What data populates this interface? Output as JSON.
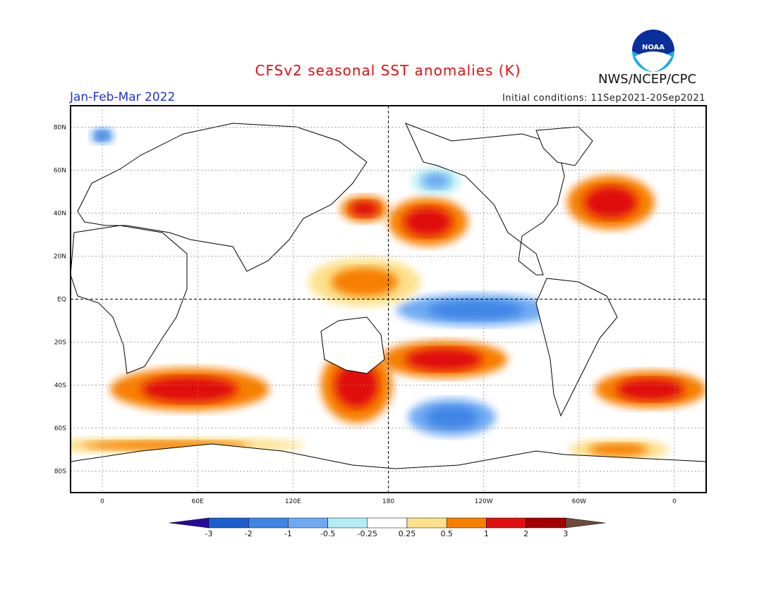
{
  "header": {
    "title": "CFSv2 seasonal SST anomalies (K)",
    "agency": "NWS/NCEP/CPC",
    "season": "Jan-Feb-Mar 2022",
    "initial_conditions": "Initial conditions: 11Sep2021-20Sep2021",
    "logo_text": "NOAA"
  },
  "map": {
    "projection": "cylindrical equidistant",
    "lon_range": [
      -20,
      380
    ],
    "lat_range": [
      -90,
      90
    ],
    "lat_ticks": [
      {
        "lat": 80,
        "label": "80N"
      },
      {
        "lat": 60,
        "label": "60N"
      },
      {
        "lat": 40,
        "label": "40N"
      },
      {
        "lat": 20,
        "label": "20N"
      },
      {
        "lat": 0,
        "label": "EQ"
      },
      {
        "lat": -20,
        "label": "20S"
      },
      {
        "lat": -40,
        "label": "40S"
      },
      {
        "lat": -60,
        "label": "60S"
      },
      {
        "lat": -80,
        "label": "80S"
      }
    ],
    "lon_ticks": [
      {
        "lon": 0,
        "label": "0"
      },
      {
        "lon": 60,
        "label": "60E"
      },
      {
        "lon": 120,
        "label": "120E"
      },
      {
        "lon": 180,
        "label": "180"
      },
      {
        "lon": 240,
        "label": "120W"
      },
      {
        "lon": 300,
        "label": "60W"
      },
      {
        "lon": 360,
        "label": "0"
      }
    ],
    "reference_lines": {
      "equator_lat": 0,
      "dateline_lon": 180
    },
    "anomaly_regions": [
      {
        "name": "central-pacific-cold-tongue",
        "lon": 235,
        "lat": -5,
        "rlon": 40,
        "rlat": 6,
        "value": -1.2
      },
      {
        "name": "west-pacific-warm-band",
        "lon": 165,
        "lat": 8,
        "rlon": 28,
        "rlat": 9,
        "value": 0.8
      },
      {
        "name": "north-pacific-warm-blob",
        "lon": 205,
        "lat": 36,
        "rlon": 20,
        "rlat": 9,
        "value": 1.5
      },
      {
        "name": "kuroshio-warm",
        "lon": 165,
        "lat": 42,
        "rlon": 12,
        "rlat": 5,
        "value": 1.6
      },
      {
        "name": "south-pacific-warm-diagonal",
        "lon": 215,
        "lat": -28,
        "rlon": 32,
        "rlat": 7,
        "value": 1.0
      },
      {
        "name": "tasman-warm",
        "lon": 160,
        "lat": -40,
        "rlon": 18,
        "rlat": 14,
        "value": 1.3
      },
      {
        "name": "southeast-pacific-cold",
        "lon": 220,
        "lat": -55,
        "rlon": 22,
        "rlat": 7,
        "value": -1.1
      },
      {
        "name": "south-indian-warm",
        "lon": 55,
        "lat": -42,
        "rlon": 40,
        "rlat": 8,
        "value": 1.0
      },
      {
        "name": "southern-ocean-warm-band",
        "lon": 40,
        "lat": -68,
        "rlon": 70,
        "rlat": 3,
        "value": 0.8
      },
      {
        "name": "south-atlantic-warm",
        "lon": 345,
        "lat": -42,
        "rlon": 28,
        "rlat": 7,
        "value": 1.1
      },
      {
        "name": "north-atlantic-warm",
        "lon": 320,
        "lat": 45,
        "rlon": 22,
        "rlat": 10,
        "value": 1.0
      },
      {
        "name": "weddell-warm",
        "lon": 325,
        "lat": -70,
        "rlon": 25,
        "rlat": 4,
        "value": 0.9
      },
      {
        "name": "northeast-pacific-cold",
        "lon": 210,
        "lat": 55,
        "rlon": 12,
        "rlat": 5,
        "value": -0.6
      },
      {
        "name": "barents-cold",
        "lon": 0,
        "lat": 76,
        "rlon": 6,
        "rlat": 3,
        "value": -1.5
      }
    ]
  },
  "colorbar": {
    "colors": [
      "#2a0a9a",
      "#1a5fcf",
      "#3f85e6",
      "#6eaaf2",
      "#b4ecf5",
      "#ffffff",
      "#fde08a",
      "#f77f00",
      "#e01010",
      "#a50000",
      "#6b4c3a"
    ],
    "labels": [
      "-3",
      "-2",
      "-1",
      "-0.5",
      "-0.25",
      "0.25",
      "0.5",
      "1",
      "2",
      "3"
    ],
    "levels": [
      -3,
      -2,
      -1,
      -0.5,
      -0.25,
      0.25,
      0.5,
      1,
      2,
      3
    ]
  }
}
